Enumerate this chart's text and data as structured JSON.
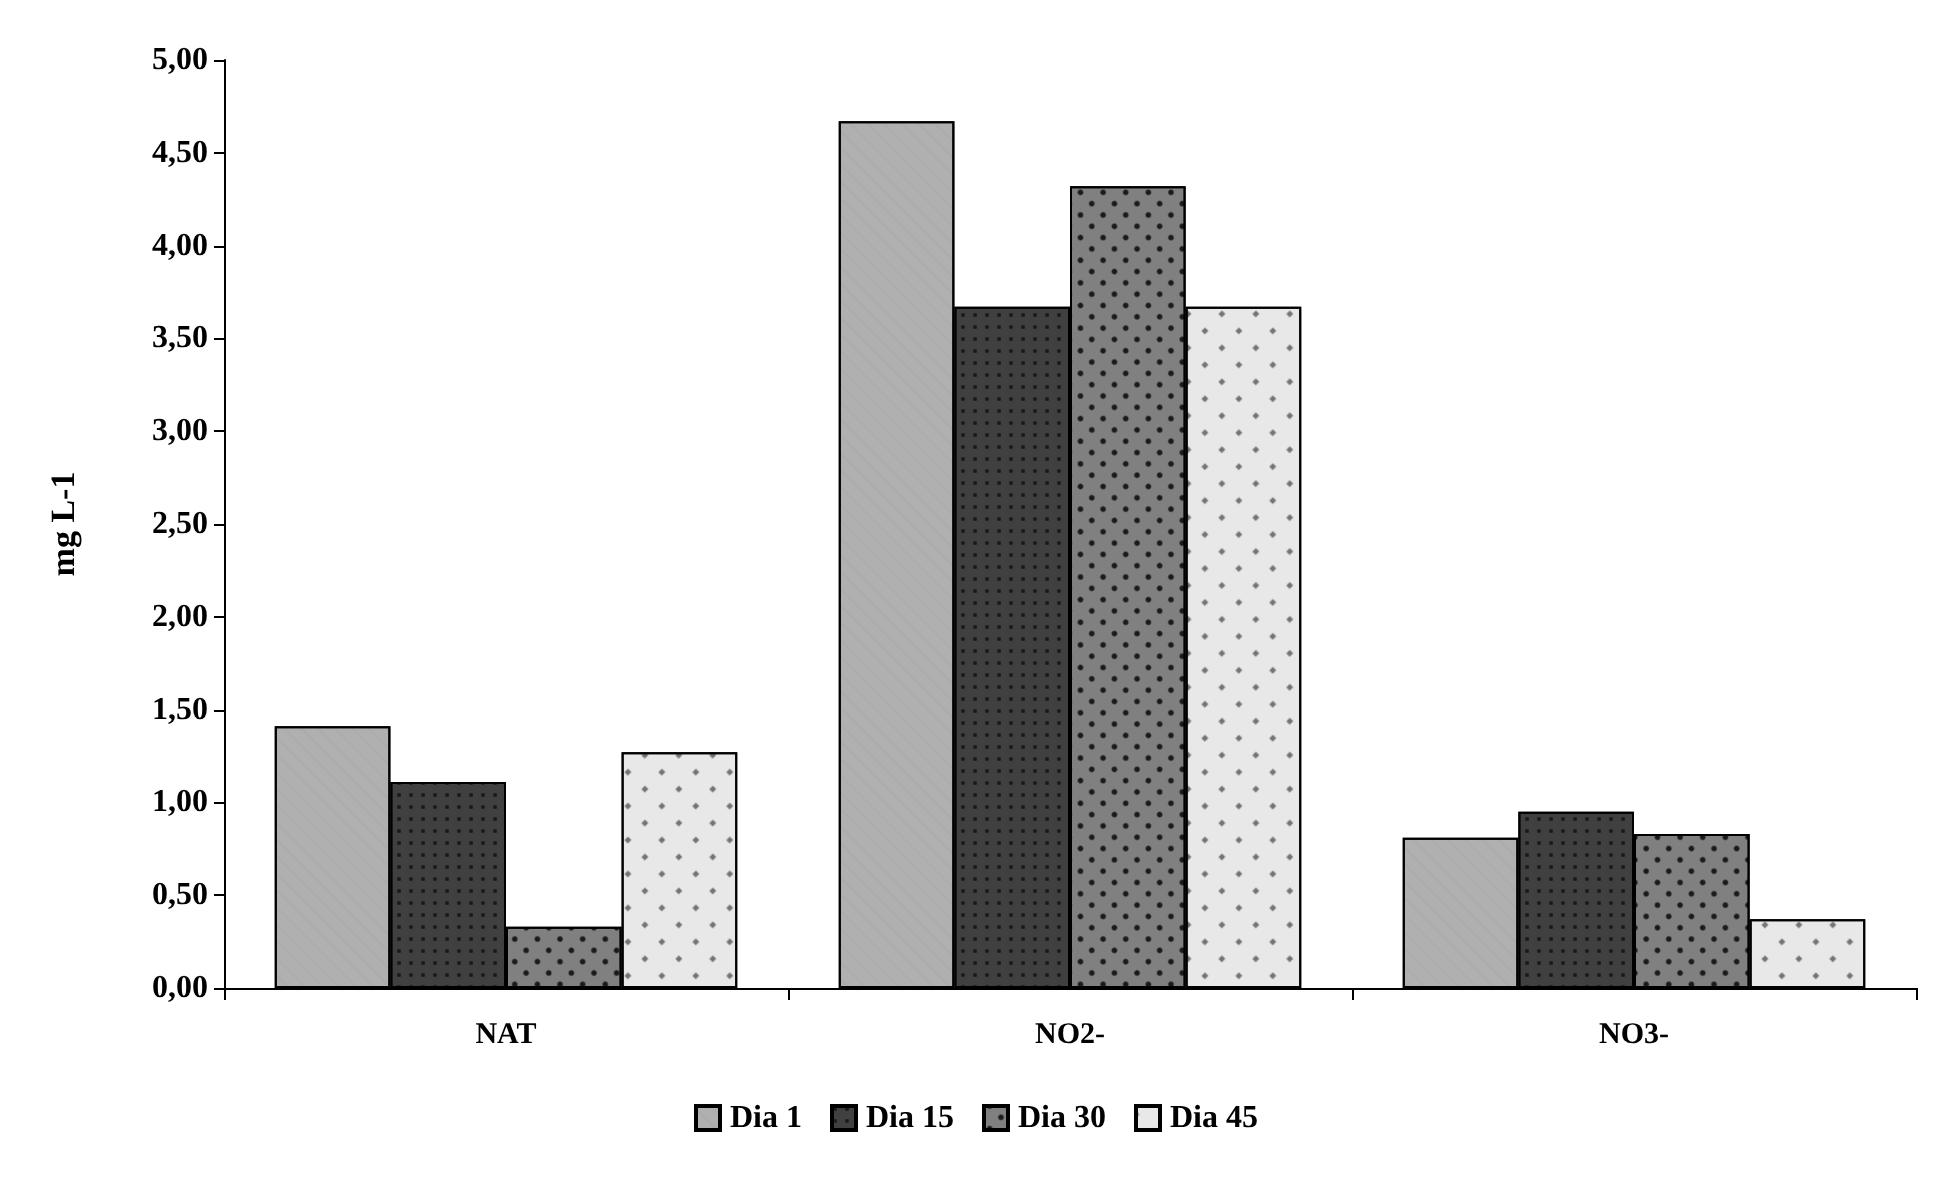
{
  "chart_data": {
    "type": "bar",
    "ylabel": "mg L-1",
    "categories": [
      "NAT",
      "NO2-",
      "NO3-"
    ],
    "series": [
      {
        "name": "Dia 1",
        "color": "#b0b0b0",
        "values": [
          1.41,
          4.67,
          0.81
        ]
      },
      {
        "name": "Dia 15",
        "color": "#404040",
        "values": [
          1.11,
          3.67,
          0.95
        ]
      },
      {
        "name": "Dia 30",
        "color": "#808080",
        "values": [
          0.33,
          4.32,
          0.83
        ]
      },
      {
        "name": "Dia 45",
        "color": "#e8e8e8",
        "values": [
          1.27,
          3.67,
          0.37
        ]
      }
    ],
    "ylim": [
      0,
      5
    ],
    "yticks": [
      {
        "value": 0,
        "label": "0,00"
      },
      {
        "value": 0.5,
        "label": "0,50"
      },
      {
        "value": 1,
        "label": "1,00"
      },
      {
        "value": 1.5,
        "label": "1,50"
      },
      {
        "value": 2,
        "label": "2,00"
      },
      {
        "value": 2.5,
        "label": "2,50"
      },
      {
        "value": 3,
        "label": "3,00"
      },
      {
        "value": 3.5,
        "label": "3,50"
      },
      {
        "value": 4,
        "label": "4,00"
      },
      {
        "value": 4.5,
        "label": "4,50"
      },
      {
        "value": 5,
        "label": "5,00"
      }
    ],
    "grid": false,
    "legend": "bottom"
  }
}
